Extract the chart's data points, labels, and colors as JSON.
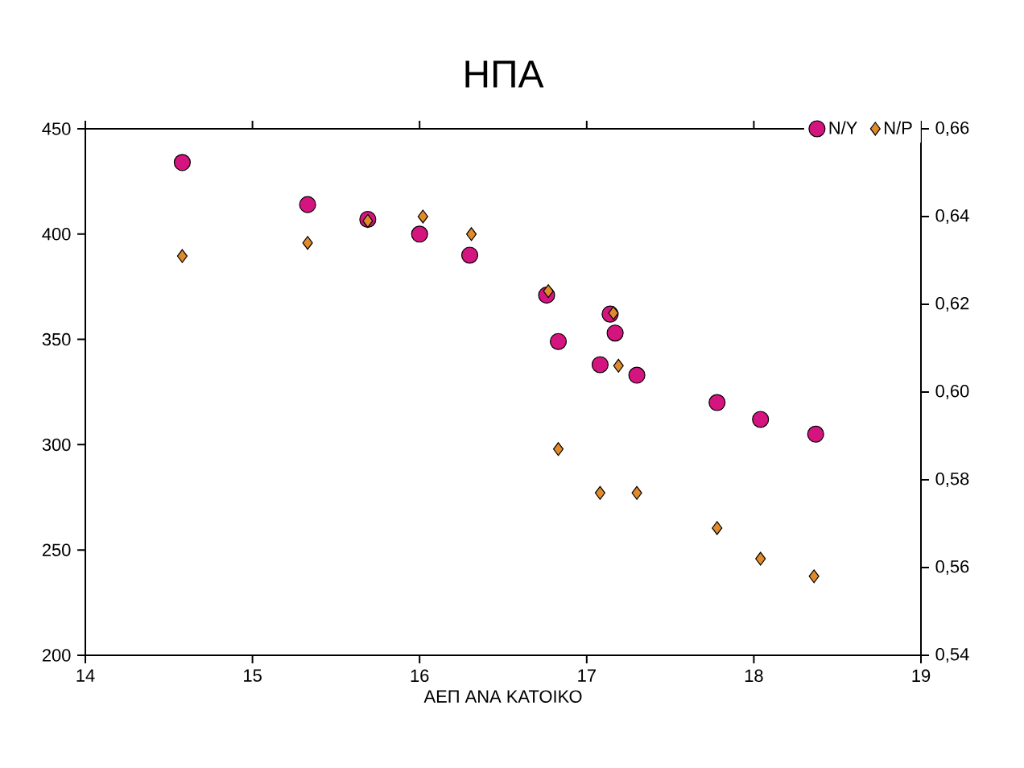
{
  "chart_data": {
    "type": "scatter",
    "title": "ΗΠΑ",
    "xlabel": "ΑΕΠ ΑΝΑ ΚΑΤΟΙΚΟ",
    "legend": "top right",
    "grid": false,
    "xlim": [
      14,
      19
    ],
    "xticks": [
      14,
      15,
      16,
      17,
      18,
      19
    ],
    "ylim": [
      200,
      450
    ],
    "yticks": [
      200,
      250,
      300,
      350,
      400,
      450
    ],
    "y2lim": [
      0.54,
      0.66
    ],
    "y2ticks": [
      {
        "value": 0.54,
        "label": "0,54"
      },
      {
        "value": 0.56,
        "label": "0,56"
      },
      {
        "value": 0.58,
        "label": "0,58"
      },
      {
        "value": 0.6,
        "label": "0,60"
      },
      {
        "value": 0.62,
        "label": "0,62"
      },
      {
        "value": 0.64,
        "label": "0,64"
      },
      {
        "value": 0.66,
        "label": "0,66"
      }
    ],
    "series": [
      {
        "name": "N/Y",
        "color": "#d4147f",
        "marker": "circle",
        "x": [
          14.58,
          15.33,
          15.69,
          16.0,
          16.3,
          16.76,
          16.83,
          17.08,
          17.14,
          17.17,
          17.3,
          17.78,
          18.04,
          18.37
        ],
        "values": [
          434,
          414,
          407,
          400,
          390,
          371,
          349,
          338,
          362,
          353,
          333,
          320,
          312,
          305
        ]
      },
      {
        "name": "N/P",
        "color": "#e08a2a",
        "marker": "diamond",
        "axis": "y2",
        "x": [
          14.58,
          15.33,
          15.69,
          16.02,
          16.31,
          16.77,
          16.83,
          17.16,
          17.19,
          17.08,
          17.3,
          17.78,
          18.04,
          18.36
        ],
        "values": [
          0.631,
          0.634,
          0.639,
          0.64,
          0.636,
          0.623,
          0.587,
          0.618,
          0.606,
          0.577,
          0.577,
          0.569,
          0.562,
          0.558
        ]
      }
    ]
  }
}
